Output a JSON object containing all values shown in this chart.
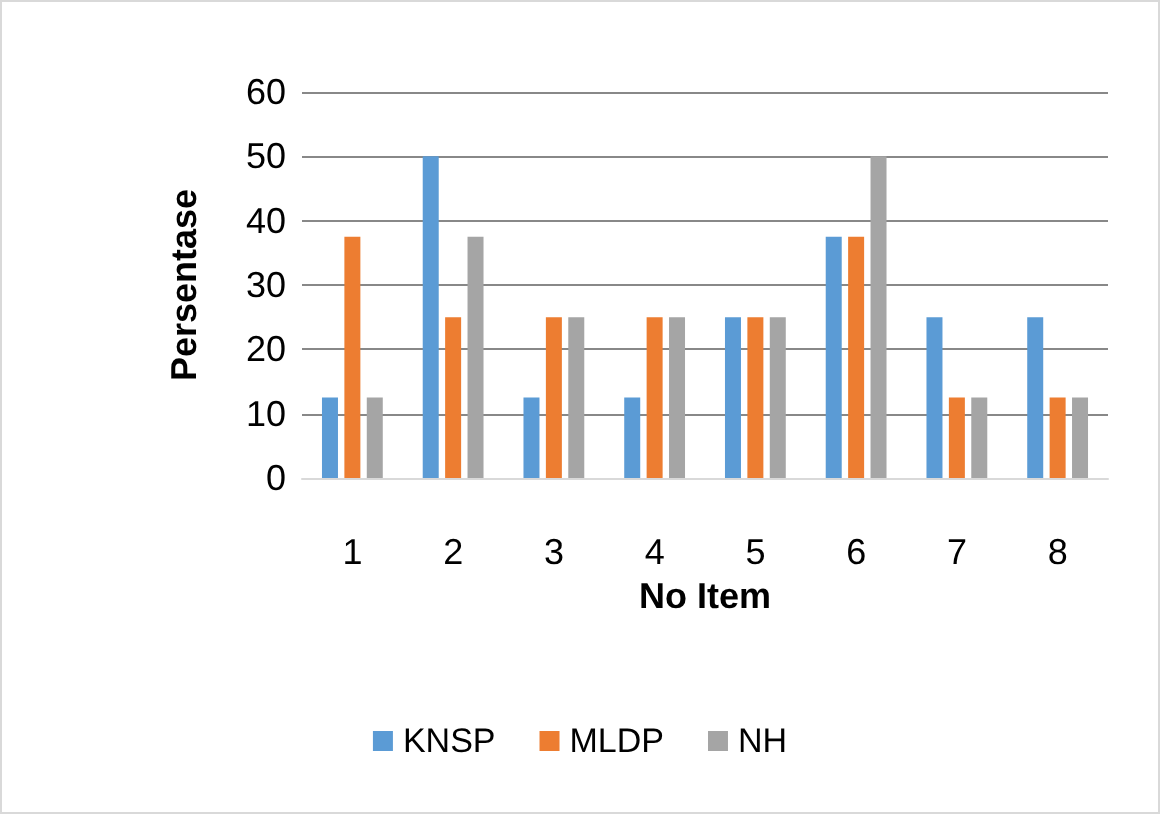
{
  "chart_data": {
    "type": "bar",
    "xlabel": "No Item",
    "ylabel": "Persentase",
    "categories": [
      "1",
      "2",
      "3",
      "4",
      "5",
      "6",
      "7",
      "8"
    ],
    "series": [
      {
        "name": "KNSP",
        "color": "#5b9bd5",
        "values": [
          12.5,
          50,
          12.5,
          12.5,
          25,
          37.5,
          25,
          25
        ]
      },
      {
        "name": "MLDP",
        "color": "#ed7d31",
        "values": [
          37.5,
          25,
          25,
          25,
          25,
          37.5,
          12.5,
          12.5
        ]
      },
      {
        "name": "NH",
        "color": "#a5a5a5",
        "values": [
          12.5,
          37.5,
          25,
          25,
          25,
          50,
          12.5,
          12.5
        ]
      }
    ],
    "ylim": [
      0,
      60
    ],
    "yticks": [
      0,
      10,
      20,
      30,
      40,
      50,
      60
    ],
    "grid": "y",
    "legend": "bottom"
  }
}
